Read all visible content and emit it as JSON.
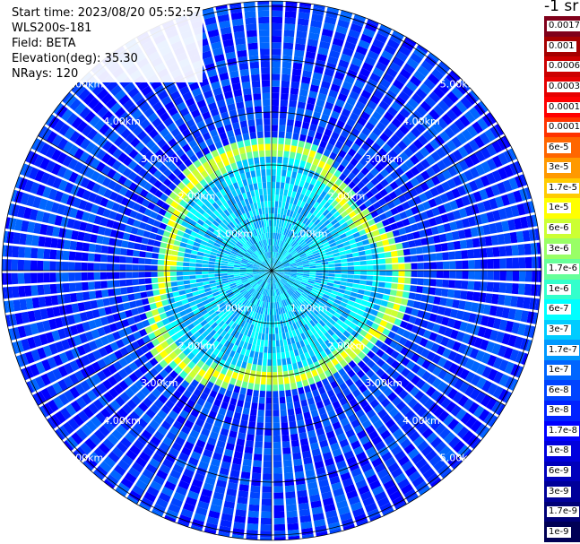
{
  "header": {
    "start_time": "Start time: 2023/08/20 05:52:57",
    "instrument": "WLS200s-181",
    "field": "Field: BETA",
    "elevation": "Elevation(deg): 35.30",
    "nrays": "NRays: 120"
  },
  "colorbar": {
    "unit": "-1 sr",
    "labels": [
      "0.0017",
      "0.001",
      "0.0006",
      "0.0003",
      "0.00017",
      "0.0001",
      "6e-5",
      "3e-5",
      "1.7e-5",
      "1e-5",
      "6e-6",
      "3e-6",
      "1.7e-6",
      "1e-6",
      "6e-7",
      "3e-7",
      "1.7e-7",
      "1e-7",
      "6e-8",
      "3e-8",
      "1.7e-8",
      "1e-8",
      "6e-9",
      "3e-9",
      "1.7e-9",
      "1e-9"
    ],
    "colors": [
      "#80001a",
      "#a60000",
      "#cc0000",
      "#e60000",
      "#ff0000",
      "#ff3300",
      "#ff6600",
      "#ff9900",
      "#ffcc00",
      "#ffff00",
      "#ccff33",
      "#99ff66",
      "#66ff99",
      "#33ffcc",
      "#00ffff",
      "#00ccff",
      "#0099ff",
      "#0066ff",
      "#0044ff",
      "#0022ff",
      "#0000ff",
      "#0000dd",
      "#0000bb",
      "#000099",
      "#000077",
      "#000055"
    ]
  },
  "chart_data": {
    "type": "heatmap",
    "projection": "polar PPI",
    "rays": 120,
    "range_ring_labels": [
      "1.00km",
      "2.00km",
      "3.00km",
      "4.00km",
      "5.00km"
    ],
    "range_rings_km": [
      1,
      2,
      3,
      4,
      5
    ],
    "max_range_km": 5.1,
    "spoke_count": 12,
    "aerosol_layer_range_km": 2.2,
    "near_field_level": "3e-7",
    "aerosol_layer_level": "1e-5",
    "far_field_level": "3e-8"
  }
}
